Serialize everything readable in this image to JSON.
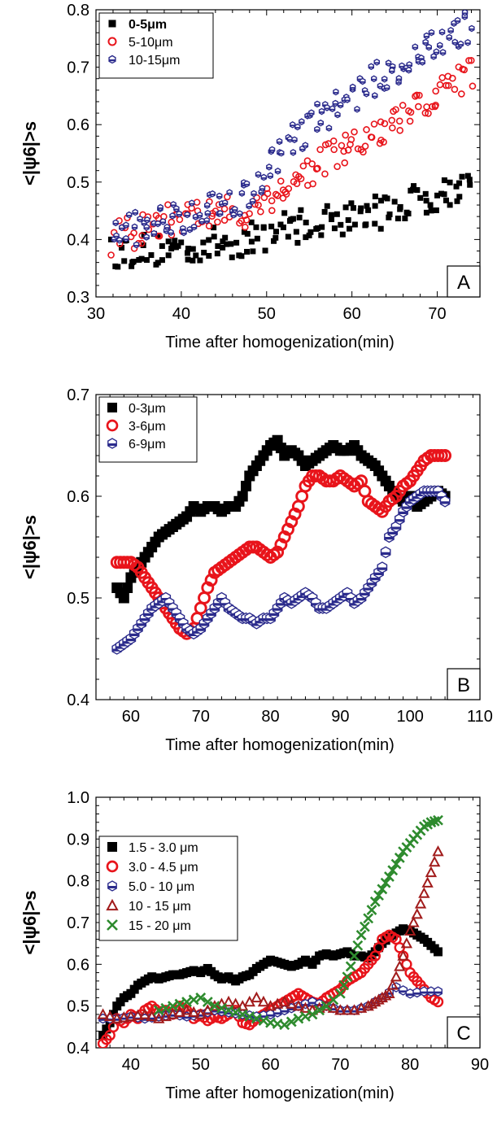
{
  "chart_data": [
    {
      "id": "A",
      "type": "scatter",
      "xlabel": "Time after homogenization(min)",
      "ylabel": "<|ψ6|>s",
      "xlim": [
        30,
        75
      ],
      "ylim": [
        0.3,
        0.8
      ],
      "xticks": [
        "30",
        "40",
        "50",
        "60",
        "70"
      ],
      "yticks": [
        "0.3",
        "0.4",
        "0.5",
        "0.6",
        "0.7",
        "0.8"
      ],
      "panel_label": "A",
      "legend_position": "top-left",
      "series": [
        {
          "name": "0-5μm",
          "marker": "square",
          "color": "#000000",
          "trend": {
            "x": [
              32,
              40,
              48,
              52,
              56,
              60,
              64,
              68,
              72,
              74
            ],
            "y": [
              0.38,
              0.385,
              0.4,
              0.42,
              0.43,
              0.44,
              0.45,
              0.47,
              0.49,
              0.5
            ]
          }
        },
        {
          "name": "5-10μm",
          "marker": "open-circle",
          "color": "#e8141b",
          "trend": {
            "x": [
              32,
              40,
              48,
              52,
              56,
              60,
              64,
              68,
              72,
              74
            ],
            "y": [
              0.4,
              0.44,
              0.45,
              0.49,
              0.53,
              0.56,
              0.59,
              0.63,
              0.67,
              0.69
            ]
          }
        },
        {
          "name": "10-15μm",
          "marker": "hexagon",
          "color": "#2b2b8c",
          "trend": {
            "x": [
              32,
              40,
              48,
              52,
              56,
              60,
              64,
              68,
              72,
              74
            ],
            "y": [
              0.41,
              0.44,
              0.48,
              0.56,
              0.61,
              0.65,
              0.69,
              0.72,
              0.76,
              0.77
            ]
          }
        }
      ]
    },
    {
      "id": "B",
      "type": "scatter",
      "xlabel": "Time after homogenization(min)",
      "ylabel": "<|ψ6|>s",
      "xlim": [
        55,
        110
      ],
      "ylim": [
        0.4,
        0.7
      ],
      "xticks": [
        "60",
        "70",
        "80",
        "90",
        "100",
        "110"
      ],
      "yticks": [
        "0.4",
        "0.5",
        "0.6",
        "0.7"
      ],
      "panel_label": "B",
      "legend_position": "top-left",
      "series": [
        {
          "name": "0-3μm",
          "marker": "square",
          "color": "#000000",
          "x": [
            58,
            59,
            60,
            61,
            62,
            63,
            64,
            65,
            66,
            67,
            68,
            69,
            70,
            71,
            72,
            73,
            74,
            75,
            76,
            77,
            78,
            79,
            80,
            81,
            82,
            83,
            84,
            85,
            86,
            87,
            88,
            89,
            90,
            91,
            92,
            93,
            94,
            95,
            96,
            97,
            98,
            99,
            100,
            101,
            102,
            103,
            104,
            105
          ],
          "y": [
            0.51,
            0.5,
            0.52,
            0.53,
            0.54,
            0.55,
            0.56,
            0.565,
            0.57,
            0.575,
            0.58,
            0.59,
            0.585,
            0.59,
            0.59,
            0.585,
            0.59,
            0.59,
            0.6,
            0.62,
            0.63,
            0.64,
            0.65,
            0.655,
            0.64,
            0.645,
            0.64,
            0.63,
            0.635,
            0.64,
            0.645,
            0.65,
            0.645,
            0.645,
            0.65,
            0.64,
            0.635,
            0.63,
            0.62,
            0.61,
            0.6,
            0.595,
            0.6,
            0.59,
            0.595,
            0.6,
            0.605,
            0.6
          ]
        },
        {
          "name": "3-6μm",
          "marker": "open-circle",
          "color": "#e8141b",
          "x": [
            58,
            59,
            60,
            61,
            62,
            63,
            64,
            65,
            66,
            67,
            68,
            69,
            70,
            71,
            72,
            73,
            74,
            75,
            76,
            77,
            78,
            79,
            80,
            81,
            82,
            83,
            84,
            85,
            86,
            87,
            88,
            89,
            90,
            91,
            92,
            93,
            94,
            95,
            96,
            97,
            98,
            99,
            100,
            101,
            102,
            103,
            104,
            105
          ],
          "y": [
            0.535,
            0.535,
            0.535,
            0.53,
            0.52,
            0.51,
            0.5,
            0.49,
            0.48,
            0.47,
            0.465,
            0.47,
            0.49,
            0.51,
            0.525,
            0.53,
            0.535,
            0.54,
            0.545,
            0.55,
            0.55,
            0.545,
            0.54,
            0.545,
            0.56,
            0.575,
            0.59,
            0.61,
            0.62,
            0.62,
            0.615,
            0.615,
            0.62,
            0.615,
            0.61,
            0.615,
            0.595,
            0.59,
            0.585,
            0.595,
            0.6,
            0.61,
            0.615,
            0.625,
            0.635,
            0.64,
            0.64,
            0.64
          ]
        },
        {
          "name": "6-9μm",
          "marker": "hexagon",
          "color": "#2b2b8c",
          "x": [
            58,
            59,
            60,
            61,
            62,
            63,
            64,
            65,
            66,
            67,
            68,
            69,
            70,
            71,
            72,
            73,
            74,
            75,
            76,
            77,
            78,
            79,
            80,
            81,
            82,
            83,
            84,
            85,
            86,
            87,
            88,
            89,
            90,
            91,
            92,
            93,
            94,
            95,
            96,
            97,
            98,
            99,
            100,
            101,
            102,
            103,
            104,
            105
          ],
          "y": [
            0.45,
            0.455,
            0.46,
            0.47,
            0.48,
            0.49,
            0.495,
            0.5,
            0.49,
            0.48,
            0.47,
            0.465,
            0.47,
            0.48,
            0.49,
            0.5,
            0.49,
            0.485,
            0.48,
            0.48,
            0.475,
            0.48,
            0.48,
            0.49,
            0.5,
            0.495,
            0.5,
            0.505,
            0.5,
            0.49,
            0.49,
            0.495,
            0.5,
            0.505,
            0.495,
            0.5,
            0.51,
            0.52,
            0.53,
            0.56,
            0.57,
            0.585,
            0.595,
            0.6,
            0.605,
            0.605,
            0.605,
            0.595
          ]
        }
      ]
    },
    {
      "id": "C",
      "type": "scatter",
      "xlabel": "Time after homogenization(min)",
      "ylabel": "<|ψ6|>s",
      "xlim": [
        35,
        90
      ],
      "ylim": [
        0.4,
        1.0
      ],
      "xticks": [
        "40",
        "50",
        "60",
        "70",
        "80",
        "90"
      ],
      "yticks": [
        "0.4",
        "0.5",
        "0.6",
        "0.7",
        "0.8",
        "0.9",
        "1.0"
      ],
      "panel_label": "C",
      "legend_position": "top-left",
      "series": [
        {
          "name": "1.5 - 3.0 μm",
          "marker": "square",
          "color": "#000000",
          "x": [
            36,
            37,
            38,
            39,
            40,
            41,
            42,
            43,
            44,
            45,
            46,
            47,
            48,
            49,
            50,
            51,
            52,
            53,
            54,
            55,
            56,
            57,
            58,
            59,
            60,
            61,
            62,
            63,
            64,
            65,
            66,
            67,
            68,
            69,
            70,
            71,
            72,
            73,
            74,
            75,
            76,
            77,
            78,
            79,
            80,
            81,
            82,
            83,
            84
          ],
          "y": [
            0.43,
            0.46,
            0.5,
            0.52,
            0.53,
            0.55,
            0.56,
            0.57,
            0.565,
            0.57,
            0.575,
            0.575,
            0.58,
            0.585,
            0.58,
            0.59,
            0.575,
            0.565,
            0.57,
            0.56,
            0.57,
            0.575,
            0.59,
            0.6,
            0.61,
            0.605,
            0.6,
            0.595,
            0.6,
            0.61,
            0.6,
            0.62,
            0.625,
            0.62,
            0.625,
            0.63,
            0.62,
            0.62,
            0.615,
            0.63,
            0.65,
            0.665,
            0.675,
            0.685,
            0.68,
            0.67,
            0.66,
            0.645,
            0.63
          ]
        },
        {
          "name": "3.0 - 4.5 μm",
          "marker": "open-circle",
          "color": "#e8141b",
          "x": [
            36,
            37,
            38,
            39,
            40,
            41,
            42,
            43,
            44,
            45,
            46,
            47,
            48,
            49,
            50,
            51,
            52,
            53,
            54,
            55,
            56,
            57,
            58,
            59,
            60,
            61,
            62,
            63,
            64,
            65,
            66,
            67,
            68,
            69,
            70,
            71,
            72,
            73,
            74,
            75,
            76,
            77,
            78,
            79,
            80,
            81,
            82,
            83,
            84
          ],
          "y": [
            0.41,
            0.43,
            0.47,
            0.46,
            0.48,
            0.47,
            0.49,
            0.5,
            0.485,
            0.49,
            0.48,
            0.5,
            0.49,
            0.47,
            0.48,
            0.465,
            0.475,
            0.47,
            0.48,
            0.49,
            0.46,
            0.455,
            0.47,
            0.48,
            0.49,
            0.5,
            0.51,
            0.52,
            0.53,
            0.52,
            0.51,
            0.505,
            0.52,
            0.53,
            0.54,
            0.56,
            0.57,
            0.58,
            0.6,
            0.62,
            0.66,
            0.67,
            0.66,
            0.62,
            0.58,
            0.56,
            0.54,
            0.52,
            0.51
          ]
        },
        {
          "name": "5.0 - 10  μm",
          "marker": "hexagon",
          "color": "#2b2b8c",
          "x": [
            36,
            38,
            40,
            42,
            44,
            46,
            48,
            50,
            52,
            54,
            56,
            58,
            60,
            62,
            64,
            66,
            68,
            70,
            72,
            74,
            76,
            78,
            80,
            82,
            84
          ],
          "y": [
            0.47,
            0.47,
            0.475,
            0.47,
            0.475,
            0.48,
            0.475,
            0.48,
            0.49,
            0.485,
            0.48,
            0.475,
            0.48,
            0.49,
            0.5,
            0.51,
            0.5,
            0.49,
            0.49,
            0.5,
            0.52,
            0.545,
            0.53,
            0.535,
            0.535
          ]
        },
        {
          "name": "10 - 15  μm",
          "marker": "triangle",
          "color": "#a11b1b",
          "x": [
            36,
            38,
            40,
            42,
            44,
            46,
            48,
            50,
            52,
            54,
            56,
            58,
            60,
            62,
            64,
            66,
            68,
            70,
            72,
            74,
            75,
            76,
            77,
            78,
            79,
            80,
            81,
            82,
            83,
            84
          ],
          "y": [
            0.48,
            0.47,
            0.475,
            0.48,
            0.47,
            0.48,
            0.49,
            0.48,
            0.5,
            0.51,
            0.5,
            0.52,
            0.5,
            0.51,
            0.5,
            0.49,
            0.5,
            0.49,
            0.49,
            0.5,
            0.51,
            0.52,
            0.53,
            0.57,
            0.62,
            0.68,
            0.72,
            0.77,
            0.82,
            0.87
          ]
        },
        {
          "name": "15 - 20  μm",
          "marker": "x",
          "color": "#2e8b2e",
          "x": [
            44,
            46,
            48,
            50,
            52,
            54,
            56,
            58,
            60,
            62,
            64,
            66,
            68,
            70,
            71,
            72,
            73,
            74,
            75,
            76,
            77,
            78,
            79,
            80,
            81,
            82,
            83,
            84
          ],
          "y": [
            0.49,
            0.5,
            0.51,
            0.52,
            0.5,
            0.49,
            0.48,
            0.47,
            0.46,
            0.455,
            0.47,
            0.48,
            0.5,
            0.53,
            0.57,
            0.62,
            0.67,
            0.71,
            0.75,
            0.78,
            0.81,
            0.84,
            0.87,
            0.89,
            0.91,
            0.93,
            0.94,
            0.945
          ]
        }
      ]
    }
  ]
}
